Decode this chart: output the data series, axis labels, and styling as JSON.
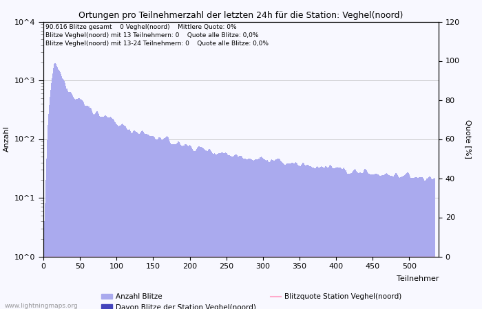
{
  "title": "Ortungen pro Teilnehmerzahl der letzten 24h für die Station: Veghel(noord)",
  "xlabel": "Teilnehmer",
  "ylabel_left": "Anzahl",
  "ylabel_right": "Quote [%]",
  "annotation_lines": [
    "90.616 Blitze gesamt    0 Veghel(noord)    Mittlere Quote: 0%",
    "Blitze Veghel(noord) mit 13 Teilnehmern: 0    Quote alle Blitze: 0,0%",
    "Blitze Veghel(noord) mit 13-24 Teilnehmern: 0    Quote alle Blitze: 0,0%"
  ],
  "watermark": "www.lightningmaps.org",
  "legend_items": [
    {
      "label": "Anzahl Blitze",
      "color": "#aaaaee"
    },
    {
      "label": "Davon Blitze der Station Veghel(noord)",
      "color": "#4444bb"
    },
    {
      "label": "Blitzquote Station Veghel(noord)",
      "color": "#ffaacc"
    }
  ],
  "bar_color_main": "#aaaaee",
  "bar_color_station": "#4444bb",
  "line_color": "#ffaacc",
  "background_color": "#f8f8ff",
  "grid_color": "#bbbbbb",
  "x_max": 535,
  "y_min": 1,
  "y_max": 10000,
  "y2_min": 0,
  "y2_max": 120,
  "y2_ticks": [
    0,
    20,
    40,
    60,
    80,
    100,
    120
  ],
  "x_ticks": [
    0,
    50,
    100,
    150,
    200,
    250,
    300,
    350,
    400,
    450,
    500
  ]
}
